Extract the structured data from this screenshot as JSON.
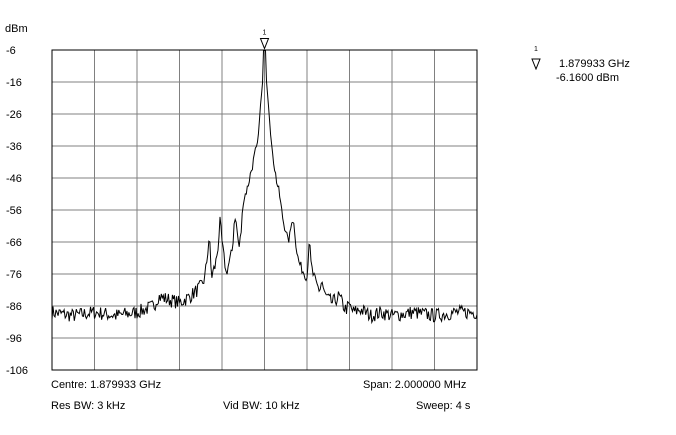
{
  "chart_data": {
    "type": "line",
    "ylabel": "dBm",
    "yticks": [
      "-6",
      "-16",
      "-26",
      "-36",
      "-46",
      "-56",
      "-66",
      "-76",
      "-86",
      "-96",
      "-106"
    ],
    "ylim": [
      -106,
      -6
    ],
    "x_divisions": 10,
    "grid": true,
    "x_unit": "MHz offset from centre",
    "xlim": [
      -1.0,
      1.0
    ],
    "series": [
      {
        "x": [
          -1.0,
          -0.9,
          -0.8,
          -0.7,
          -0.6,
          -0.52,
          -0.5,
          -0.45,
          -0.4,
          -0.35,
          -0.3,
          -0.28,
          -0.27,
          -0.26,
          -0.25,
          -0.23,
          -0.22,
          -0.21,
          -0.2,
          -0.18,
          -0.15,
          -0.14,
          -0.13,
          -0.12,
          -0.11,
          -0.1,
          -0.08,
          -0.06,
          -0.04,
          -0.03,
          -0.02,
          -0.01,
          0.0,
          0.01,
          0.02,
          0.03,
          0.04,
          0.05,
          0.06,
          0.07,
          0.08,
          0.09,
          0.1,
          0.11,
          0.12,
          0.13,
          0.14,
          0.15,
          0.16,
          0.18,
          0.2,
          0.21,
          0.22,
          0.24,
          0.26,
          0.27,
          0.28,
          0.3,
          0.32,
          0.35,
          0.38,
          0.4,
          0.42,
          0.45,
          0.5,
          0.55,
          0.6,
          0.7,
          0.8,
          0.9,
          1.0
        ],
        "values": [
          -88,
          -89,
          -88,
          -89,
          -88,
          -86,
          -83,
          -84,
          -85,
          -83,
          -80,
          -77,
          -71,
          -64,
          -77,
          -73,
          -68,
          -60,
          -66,
          -76,
          -68,
          -57,
          -62,
          -68,
          -63,
          -53,
          -49,
          -43,
          -37,
          -34,
          -24,
          -17,
          -6,
          -16,
          -24,
          -34,
          -39,
          -44,
          -48,
          -51,
          -56,
          -60,
          -62,
          -66,
          -64,
          -58,
          -61,
          -68,
          -72,
          -75,
          -77,
          -65,
          -74,
          -79,
          -81,
          -78,
          -82,
          -84,
          -85,
          -83,
          -87,
          -86,
          -88,
          -87,
          -89,
          -88,
          -89,
          -88,
          -89,
          -88,
          -88
        ]
      }
    ],
    "marker": {
      "number": "1",
      "frequency": "1.879933 GHz",
      "level": "-6.1600 dBm",
      "x": 0.0,
      "y": -6.16
    }
  },
  "footer": {
    "centre": "Centre: 1.879933 GHz",
    "span": "Span: 2.000000 MHz",
    "rbw": "Res BW: 3 kHz",
    "vbw": "Vid BW: 10 kHz",
    "sweep": "Sweep: 4 s"
  },
  "colors": {
    "trace": "#000000",
    "grid": "#808080",
    "frame": "#000000"
  }
}
